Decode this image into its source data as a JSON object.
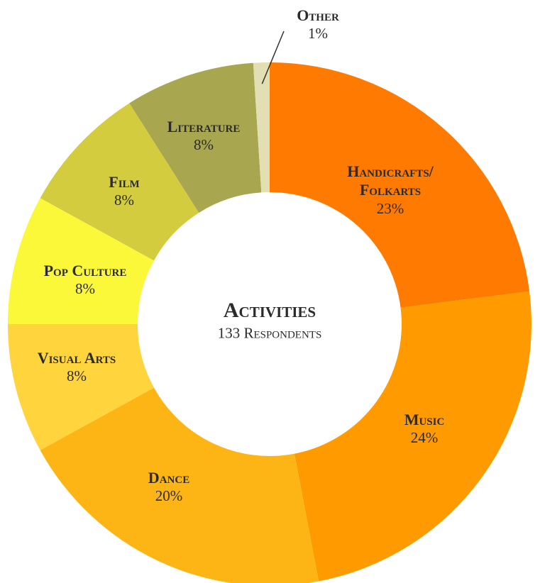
{
  "chart_data": {
    "type": "donut",
    "title": "Activities",
    "subtitle": "133 Respondents",
    "categories": [
      "Handicrafts/\nFolkarts",
      "Music",
      "Dance",
      "Visual Arts",
      "Pop Culture",
      "Film",
      "Literature",
      "Other"
    ],
    "values": [
      23,
      24,
      20,
      8,
      8,
      8,
      8,
      1
    ],
    "value_labels": [
      "23%",
      "24%",
      "20%",
      "8%",
      "8%",
      "8%",
      "8%",
      "1%"
    ],
    "colors": [
      "#ff7a00",
      "#ff9a00",
      "#fdb515",
      "#ffd43c",
      "#fbf83a",
      "#d3cc3e",
      "#a9a650",
      "#e1dfb3"
    ]
  }
}
